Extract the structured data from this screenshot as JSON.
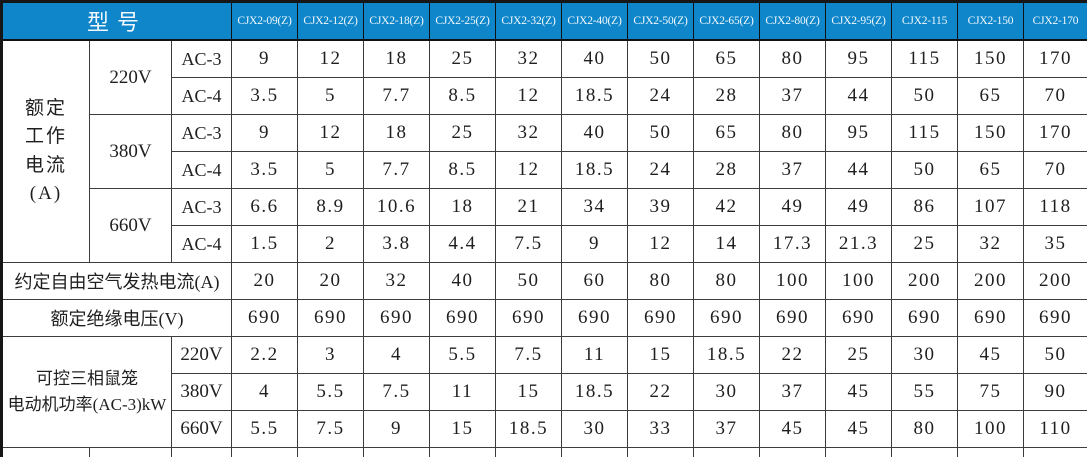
{
  "table": {
    "corner_label": "型号",
    "models": [
      "CJX2-09(Z)",
      "CJX2-12(Z)",
      "CJX2-18(Z)",
      "CJX2-25(Z)",
      "CJX2-32(Z)",
      "CJX2-40(Z)",
      "CJX2-50(Z)",
      "CJX2-65(Z)",
      "CJX2-80(Z)",
      "CJX2-95(Z)",
      "CJX2-115",
      "CJX2-150",
      "CJX2-170"
    ],
    "body_rows": [
      {
        "cells": [
          {
            "text": "额定\n工作\n电流\n(A)",
            "k": "section",
            "rowspan": 6
          },
          {
            "text": "220V",
            "k": "voltage",
            "rowspan": 2
          },
          {
            "text": "AC-3",
            "k": "load"
          },
          "9",
          "12",
          "18",
          "25",
          "32",
          "40",
          "50",
          "65",
          "80",
          "95",
          "115",
          "150",
          "170"
        ]
      },
      {
        "cells": [
          {
            "text": "AC-4",
            "k": "load"
          },
          "3.5",
          "5",
          "7.7",
          "8.5",
          "12",
          "18.5",
          "24",
          "28",
          "37",
          "44",
          "50",
          "65",
          "70"
        ]
      },
      {
        "cells": [
          {
            "text": "380V",
            "k": "voltage",
            "rowspan": 2
          },
          {
            "text": "AC-3",
            "k": "load"
          },
          "9",
          "12",
          "18",
          "25",
          "32",
          "40",
          "50",
          "65",
          "80",
          "95",
          "115",
          "150",
          "170"
        ]
      },
      {
        "cells": [
          {
            "text": "AC-4",
            "k": "load"
          },
          "3.5",
          "5",
          "7.7",
          "8.5",
          "12",
          "18.5",
          "24",
          "28",
          "37",
          "44",
          "50",
          "65",
          "70"
        ]
      },
      {
        "cells": [
          {
            "text": "660V",
            "k": "voltage",
            "rowspan": 2
          },
          {
            "text": "AC-3",
            "k": "load"
          },
          "6.6",
          "8.9",
          "10.6",
          "18",
          "21",
          "34",
          "39",
          "42",
          "49",
          "49",
          "86",
          "107",
          "118"
        ]
      },
      {
        "cells": [
          {
            "text": "AC-4",
            "k": "load"
          },
          "1.5",
          "2",
          "3.8",
          "4.4",
          "7.5",
          "9",
          "12",
          "14",
          "17.3",
          "21.3",
          "25",
          "32",
          "35"
        ]
      },
      {
        "cells": [
          {
            "text": "约定自由空气发热电流(A)",
            "k": "row",
            "colspan": 3
          },
          "20",
          "20",
          "32",
          "40",
          "50",
          "60",
          "80",
          "80",
          "100",
          "100",
          "200",
          "200",
          "200"
        ]
      },
      {
        "cells": [
          {
            "text": "额定绝缘电压(V)",
            "k": "row",
            "colspan": 3
          },
          "690",
          "690",
          "690",
          "690",
          "690",
          "690",
          "690",
          "690",
          "690",
          "690",
          "690",
          "690",
          "690"
        ]
      },
      {
        "cells": [
          {
            "text": "可控三相鼠笼\n电动机功率(AC-3)kW",
            "k": "motor",
            "colspan": 2,
            "rowspan": 3
          },
          {
            "text": "220V",
            "k": "voltage"
          },
          "2.2",
          "3",
          "4",
          "5.5",
          "7.5",
          "11",
          "15",
          "18.5",
          "22",
          "25",
          "30",
          "45",
          "50"
        ]
      },
      {
        "cells": [
          {
            "text": "380V",
            "k": "voltage"
          },
          "4",
          "5.5",
          "7.5",
          "11",
          "15",
          "18.5",
          "22",
          "30",
          "37",
          "45",
          "55",
          "75",
          "90"
        ]
      },
      {
        "cells": [
          {
            "text": "660V",
            "k": "voltage"
          },
          "5.5",
          "7.5",
          "9",
          "15",
          "18.5",
          "30",
          "33",
          "37",
          "45",
          "45",
          "80",
          "100",
          "110"
        ]
      }
    ]
  },
  "chart_data": {
    "type": "table",
    "title": "型号",
    "columns": [
      "CJX2-09(Z)",
      "CJX2-12(Z)",
      "CJX2-18(Z)",
      "CJX2-25(Z)",
      "CJX2-32(Z)",
      "CJX2-40(Z)",
      "CJX2-50(Z)",
      "CJX2-65(Z)",
      "CJX2-80(Z)",
      "CJX2-95(Z)",
      "CJX2-115",
      "CJX2-150",
      "CJX2-170"
    ],
    "rows": [
      {
        "section": "额定工作电流(A)",
        "voltage": "220V",
        "load": "AC-3",
        "values": [
          9,
          12,
          18,
          25,
          32,
          40,
          50,
          65,
          80,
          95,
          115,
          150,
          170
        ]
      },
      {
        "section": "额定工作电流(A)",
        "voltage": "220V",
        "load": "AC-4",
        "values": [
          3.5,
          5,
          7.7,
          8.5,
          12,
          18.5,
          24,
          28,
          37,
          44,
          50,
          65,
          70
        ]
      },
      {
        "section": "额定工作电流(A)",
        "voltage": "380V",
        "load": "AC-3",
        "values": [
          9,
          12,
          18,
          25,
          32,
          40,
          50,
          65,
          80,
          95,
          115,
          150,
          170
        ]
      },
      {
        "section": "额定工作电流(A)",
        "voltage": "380V",
        "load": "AC-4",
        "values": [
          3.5,
          5,
          7.7,
          8.5,
          12,
          18.5,
          24,
          28,
          37,
          44,
          50,
          65,
          70
        ]
      },
      {
        "section": "额定工作电流(A)",
        "voltage": "660V",
        "load": "AC-3",
        "values": [
          6.6,
          8.9,
          10.6,
          18,
          21,
          34,
          39,
          42,
          49,
          49,
          86,
          107,
          118
        ]
      },
      {
        "section": "额定工作电流(A)",
        "voltage": "660V",
        "load": "AC-4",
        "values": [
          1.5,
          2,
          3.8,
          4.4,
          7.5,
          9,
          12,
          14,
          17.3,
          21.3,
          25,
          32,
          35
        ]
      },
      {
        "section": "约定自由空气发热电流(A)",
        "values": [
          20,
          20,
          32,
          40,
          50,
          60,
          80,
          80,
          100,
          100,
          200,
          200,
          200
        ]
      },
      {
        "section": "额定绝缘电压(V)",
        "values": [
          690,
          690,
          690,
          690,
          690,
          690,
          690,
          690,
          690,
          690,
          690,
          690,
          690
        ]
      },
      {
        "section": "可控三相鼠笼电动机功率(AC-3)kW",
        "voltage": "220V",
        "values": [
          2.2,
          3,
          4,
          5.5,
          7.5,
          11,
          15,
          18.5,
          22,
          25,
          30,
          45,
          50
        ]
      },
      {
        "section": "可控三相鼠笼电动机功率(AC-3)kW",
        "voltage": "380V",
        "values": [
          4,
          5.5,
          7.5,
          11,
          15,
          18.5,
          22,
          30,
          37,
          45,
          55,
          75,
          90
        ]
      },
      {
        "section": "可控三相鼠笼电动机功率(AC-3)kW",
        "voltage": "660V",
        "values": [
          5.5,
          7.5,
          9,
          15,
          18.5,
          30,
          33,
          37,
          45,
          45,
          80,
          100,
          110
        ]
      }
    ]
  },
  "colors": {
    "header_bg": "#0e86c9",
    "header_text": "#ffffff",
    "grid_border": "#3c3c3c",
    "outer_border": "#161616",
    "cell_text": "#1f1f1f"
  }
}
